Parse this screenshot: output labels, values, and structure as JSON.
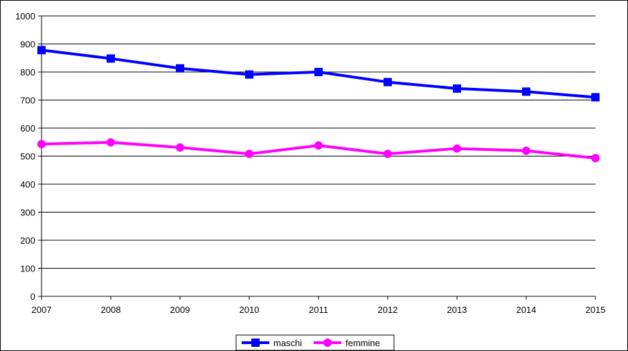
{
  "chart_data": {
    "type": "line",
    "title": "",
    "xlabel": "",
    "ylabel": "",
    "x": [
      "2007",
      "2008",
      "2009",
      "2010",
      "2011",
      "2012",
      "2013",
      "2014",
      "2015"
    ],
    "ylim": [
      0,
      1000
    ],
    "yticks": [
      0,
      100,
      200,
      300,
      400,
      500,
      600,
      700,
      800,
      900,
      1000
    ],
    "grid": "horizontal",
    "legend_position": "bottom",
    "series": [
      {
        "name": "maschi",
        "color": "#0000ff",
        "marker": "square",
        "values": [
          878,
          848,
          813,
          791,
          800,
          764,
          741,
          730,
          710
        ]
      },
      {
        "name": "femmine",
        "color": "#ff00ff",
        "marker": "circle",
        "values": [
          543,
          549,
          531,
          508,
          538,
          508,
          527,
          519,
          493
        ]
      }
    ]
  }
}
